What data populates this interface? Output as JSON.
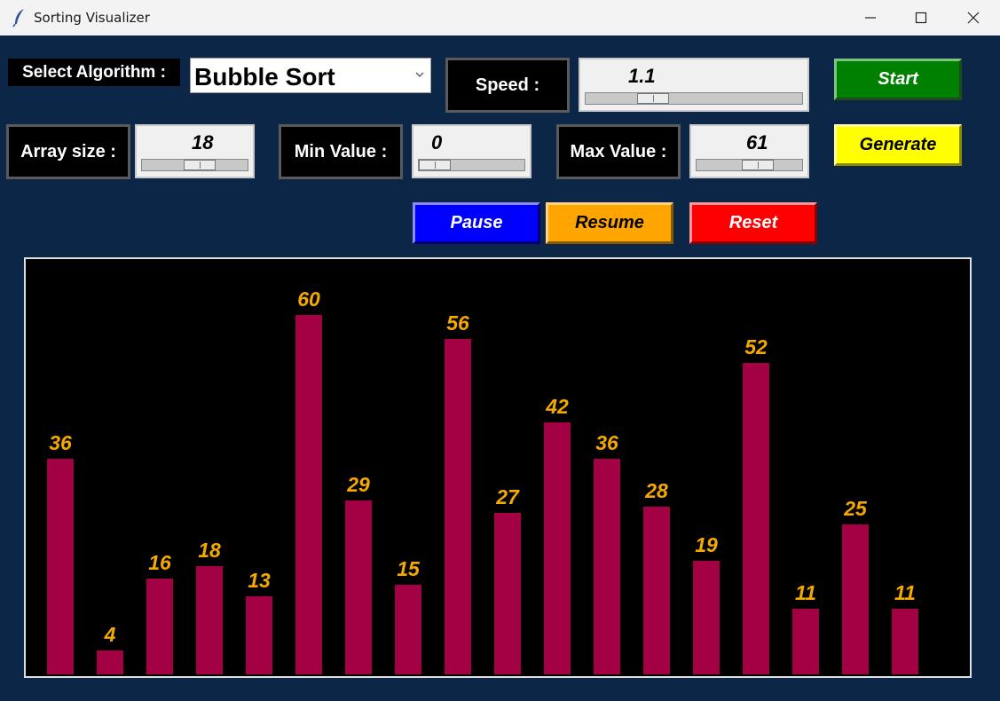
{
  "window": {
    "title": "Sorting Visualizer",
    "icon": "feather-icon"
  },
  "controls": {
    "algorithm_label": "Select Algorithm :",
    "algorithm_value": "Bubble Sort",
    "speed_label": "Speed :",
    "speed": {
      "value": "1.1",
      "fraction": 0.28
    },
    "array_size_label": "Array size :",
    "array_size": {
      "value": "18",
      "fraction": 0.57
    },
    "min_label": "Min Value :",
    "min_value": {
      "value": "0",
      "fraction": 0.0
    },
    "max_label": "Max Value :",
    "max_value": {
      "value": "61",
      "fraction": 0.61
    },
    "start_label": "Start",
    "generate_label": "Generate",
    "pause_label": "Pause",
    "resume_label": "Resume",
    "reset_label": "Reset"
  },
  "colors": {
    "background": "#0b2646",
    "bar": "#a40044",
    "bar_label": "#f5a800",
    "start": "#008000",
    "generate": "#ffff00",
    "pause": "#0000ff",
    "resume": "#ffa500",
    "reset": "#ff0000"
  },
  "chart_data": {
    "type": "bar",
    "values": [
      36,
      4,
      16,
      18,
      13,
      60,
      29,
      15,
      56,
      27,
      42,
      36,
      28,
      19,
      52,
      11,
      25,
      11
    ],
    "labels": [
      "36",
      "4",
      "16",
      "18",
      "13",
      "60",
      "29",
      "15",
      "56",
      "27",
      "42",
      "36",
      "28",
      "19",
      "52",
      "11",
      "25",
      "11"
    ]
  }
}
